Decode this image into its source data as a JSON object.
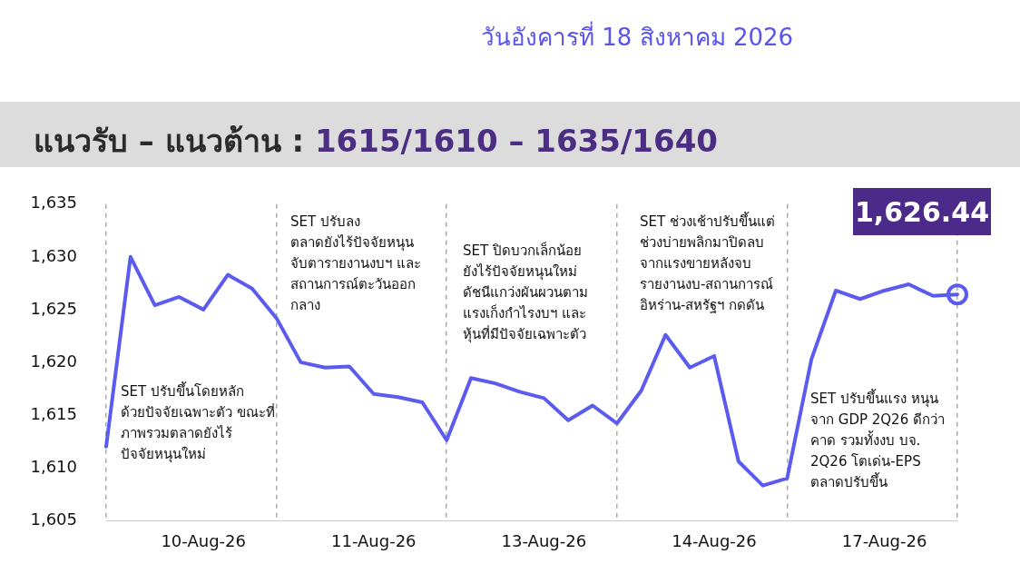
{
  "chart_data": {
    "type": "line",
    "title": "แนวรับ – แนวต้าน : 1615/1610 – 1635/1640",
    "subtitle": "วันอังคารที่ 18 สิงหาคม 2026",
    "categories": [
      null,
      null,
      null,
      null,
      "10-Aug-26",
      null,
      null,
      null,
      null,
      null,
      null,
      "11-Aug-26",
      null,
      null,
      null,
      null,
      null,
      null,
      "13-Aug-26",
      null,
      null,
      null,
      null,
      null,
      null,
      "14-Aug-26",
      null,
      null,
      null,
      null,
      null,
      null,
      "17-Aug-26",
      null,
      null,
      null
    ],
    "series": [
      {
        "color": "#5b5bf0",
        "values": [
          1612,
          1630,
          1625.4,
          1626.2,
          1625,
          1628.3,
          1627,
          1624.2,
          1620,
          1619.5,
          1619.6,
          1617,
          1616.7,
          1616.2,
          1612.6,
          1618.5,
          1618,
          1617.2,
          1616.6,
          1614.5,
          1615.9,
          1614.2,
          1617.3,
          1622.6,
          1619.5,
          1620.6,
          1610.6,
          1608.3,
          1609,
          1620.3,
          1626.8,
          1626,
          1626.8,
          1627.4,
          1626.3,
          1626.44
        ]
      }
    ],
    "ylim": [
      1605,
      1635
    ],
    "yticks": [
      {
        "value": 1605,
        "label": "1,605"
      },
      {
        "value": 1610,
        "label": "1,610"
      },
      {
        "value": 1615,
        "label": "1,615"
      },
      {
        "value": 1620,
        "label": "1,620"
      },
      {
        "value": 1625,
        "label": "1,625"
      },
      {
        "value": 1630,
        "label": "1,630"
      },
      {
        "value": 1635,
        "label": "1,635"
      }
    ],
    "grid": "x",
    "legend": false,
    "marker": "none",
    "line_style": "solid",
    "annotations": [
      "SET ปรับขึ้นโดยหลัก\nด้วยปัจจัยเฉพาะตัว ขณะที่\nภาพรวมตลาดยังไร้\nปัจจัยหนุนใหม่",
      "SET ปรับลง\nตลาดยังไร้ปัจจัยหนุน\nจับตารายงานงบฯ และ\nสถานการณ์ตะวันออก\nกลาง",
      "SET ปิดบวกเล็กน้อย\nยังไร้ปัจจัยหนุนใหม่\nดัชนีแกว่งผันผวนตาม\nแรงเก็งกำไรงบฯ และ\nหุ้นที่มีปัจจัยเฉพาะตัว",
      "SET ช่วงเช้าปรับขึ้นแต่\nช่วงบ่ายพลิกมาปิดลบ\nจากแรงขายหลังจบ\nรายงานงบ-สถานการณ์\nอิหร่าน-สหรัฐฯ กดดัน",
      "SET ปรับขึ้นแรง หนุน\nจาก GDP 2Q26 ดีกว่า\nคาด รวมทั้งงบ บจ.\n2Q26 โตเด่น-EPS\nตลาดปรับขึ้น",
      "1,626.44"
    ]
  }
}
